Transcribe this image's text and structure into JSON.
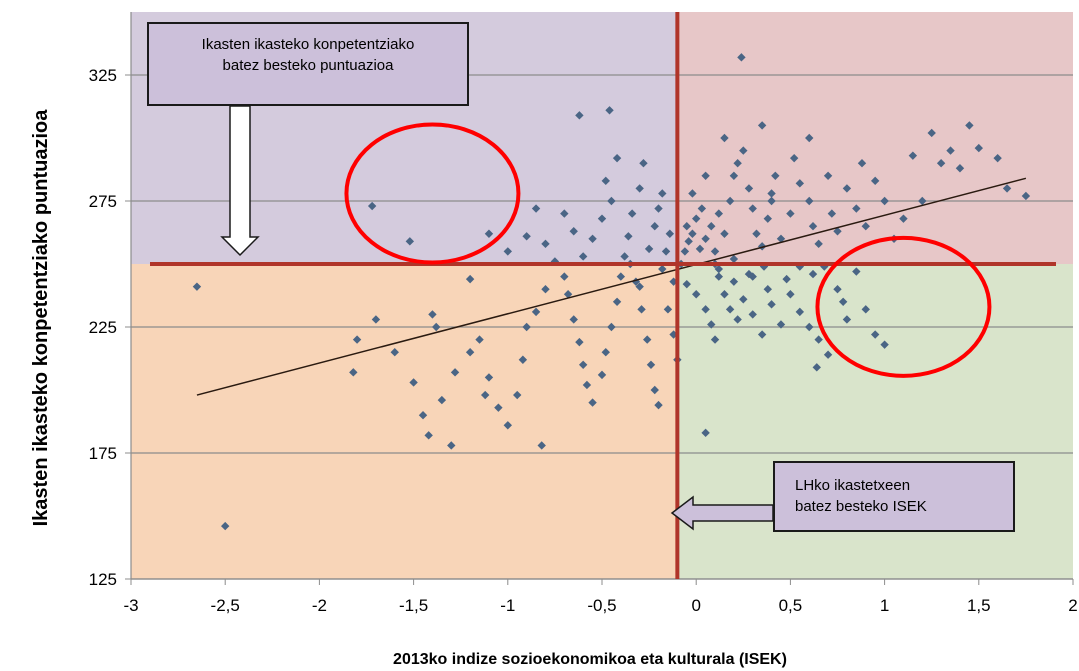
{
  "chart_data": {
    "type": "scatter",
    "xlabel": "2013ko indize sozioekonomikoa eta kulturala (ISEK)",
    "ylabel": "Ikasten ikasteko konpetentziako puntuazioa",
    "xlim": [
      -3,
      2
    ],
    "ylim": [
      125,
      350
    ],
    "x_ticks": [
      "-3",
      "-2,5",
      "-2",
      "-1,5",
      "-1",
      "-0,5",
      "0",
      "0,5",
      "1",
      "1,5",
      "2"
    ],
    "y_ticks": [
      "125",
      "175",
      "225",
      "275",
      "325"
    ],
    "grid": "horizontal",
    "reference_lines": {
      "mean_isek": -0.1,
      "mean_score": 250
    },
    "trendline": [
      [
        -2.65,
        198
      ],
      [
        1.75,
        284
      ]
    ],
    "quadrant_colors": {
      "top_left": "#d4cbdd",
      "top_right": "#e7c7c8",
      "bottom_left": "#f8d5b8",
      "bottom_right": "#d9e4cb"
    },
    "reference_line_color": "#b0352a",
    "marker_color": "#4a6585",
    "annotations": [
      {
        "id": "mean-score",
        "lines": [
          "Ikasten ikasteko konpetentziako",
          "batez besteko puntuazioa"
        ]
      },
      {
        "id": "mean-isek",
        "lines": [
          "LHko ikastetxeen",
          "batez besteko ISEK"
        ]
      }
    ],
    "highlight_circles": [
      {
        "x": -1.4,
        "y": 278
      },
      {
        "x": 1.1,
        "y": 233
      }
    ],
    "points": [
      [
        -2.65,
        241
      ],
      [
        -2.5,
        146
      ],
      [
        -1.72,
        273
      ],
      [
        -1.52,
        259
      ],
      [
        -1.8,
        220
      ],
      [
        -1.7,
        228
      ],
      [
        -1.82,
        207
      ],
      [
        -1.6,
        215
      ],
      [
        -1.5,
        203
      ],
      [
        -1.45,
        190
      ],
      [
        -1.42,
        182
      ],
      [
        -1.35,
        196
      ],
      [
        -1.3,
        178
      ],
      [
        -1.28,
        207
      ],
      [
        -1.4,
        230
      ],
      [
        -1.38,
        225
      ],
      [
        -1.2,
        215
      ],
      [
        -1.15,
        220
      ],
      [
        -1.1,
        205
      ],
      [
        -1.12,
        198
      ],
      [
        -1.05,
        193
      ],
      [
        -1.0,
        186
      ],
      [
        -0.95,
        198
      ],
      [
        -0.92,
        212
      ],
      [
        -0.9,
        225
      ],
      [
        -0.85,
        231
      ],
      [
        -0.82,
        178
      ],
      [
        -0.8,
        240
      ],
      [
        -1.2,
        244
      ],
      [
        -1.1,
        262
      ],
      [
        -1.0,
        255
      ],
      [
        -0.9,
        261
      ],
      [
        -0.85,
        272
      ],
      [
        -0.8,
        258
      ],
      [
        -0.75,
        251
      ],
      [
        -0.7,
        245
      ],
      [
        -0.68,
        238
      ],
      [
        -0.65,
        228
      ],
      [
        -0.62,
        219
      ],
      [
        -0.6,
        210
      ],
      [
        -0.58,
        202
      ],
      [
        -0.55,
        195
      ],
      [
        -0.5,
        206
      ],
      [
        -0.48,
        215
      ],
      [
        -0.45,
        225
      ],
      [
        -0.42,
        235
      ],
      [
        -0.4,
        245
      ],
      [
        -0.38,
        253
      ],
      [
        -0.36,
        261
      ],
      [
        -0.34,
        270
      ],
      [
        -0.3,
        280
      ],
      [
        -0.28,
        290
      ],
      [
        -0.32,
        243
      ],
      [
        -0.29,
        232
      ],
      [
        -0.26,
        220
      ],
      [
        -0.24,
        210
      ],
      [
        -0.22,
        200
      ],
      [
        -0.2,
        194
      ],
      [
        -0.18,
        248
      ],
      [
        -0.16,
        255
      ],
      [
        -0.14,
        262
      ],
      [
        -0.12,
        243
      ],
      [
        -0.15,
        232
      ],
      [
        -0.12,
        222
      ],
      [
        -0.1,
        212
      ],
      [
        -0.25,
        256
      ],
      [
        -0.22,
        265
      ],
      [
        -0.2,
        272
      ],
      [
        -0.18,
        278
      ],
      [
        -0.3,
        241
      ],
      [
        -0.35,
        250
      ],
      [
        -0.55,
        260
      ],
      [
        -0.5,
        268
      ],
      [
        -0.45,
        275
      ],
      [
        -0.6,
        253
      ],
      [
        -0.65,
        263
      ],
      [
        -0.7,
        270
      ],
      [
        -0.48,
        283
      ],
      [
        -0.42,
        292
      ],
      [
        -0.46,
        311
      ],
      [
        -0.62,
        309
      ],
      [
        -0.08,
        250
      ],
      [
        -0.06,
        255
      ],
      [
        -0.04,
        259
      ],
      [
        -0.02,
        262
      ],
      [
        0.0,
        268
      ],
      [
        0.02,
        256
      ],
      [
        0.05,
        260
      ],
      [
        0.08,
        265
      ],
      [
        0.1,
        255
      ],
      [
        0.12,
        270
      ],
      [
        0.15,
        262
      ],
      [
        0.18,
        275
      ],
      [
        0.2,
        285
      ],
      [
        0.22,
        290
      ],
      [
        0.24,
        332
      ],
      [
        0.25,
        295
      ],
      [
        0.28,
        280
      ],
      [
        0.3,
        272
      ],
      [
        0.32,
        262
      ],
      [
        0.35,
        257
      ],
      [
        0.38,
        268
      ],
      [
        0.4,
        278
      ],
      [
        0.42,
        285
      ],
      [
        0.45,
        260
      ],
      [
        0.5,
        270
      ],
      [
        0.52,
        292
      ],
      [
        0.55,
        282
      ],
      [
        0.6,
        275
      ],
      [
        0.62,
        265
      ],
      [
        0.65,
        258
      ],
      [
        0.7,
        285
      ],
      [
        0.72,
        270
      ],
      [
        0.75,
        263
      ],
      [
        0.8,
        280
      ],
      [
        0.85,
        272
      ],
      [
        0.88,
        290
      ],
      [
        0.9,
        265
      ],
      [
        0.95,
        283
      ],
      [
        1.0,
        275
      ],
      [
        1.05,
        260
      ],
      [
        1.1,
        268
      ],
      [
        1.15,
        293
      ],
      [
        1.2,
        275
      ],
      [
        1.25,
        302
      ],
      [
        1.3,
        290
      ],
      [
        1.35,
        295
      ],
      [
        1.4,
        288
      ],
      [
        1.45,
        305
      ],
      [
        1.5,
        296
      ],
      [
        1.6,
        292
      ],
      [
        1.65,
        280
      ],
      [
        1.75,
        277
      ],
      [
        -0.05,
        242
      ],
      [
        0.0,
        238
      ],
      [
        0.05,
        232
      ],
      [
        0.08,
        226
      ],
      [
        0.1,
        220
      ],
      [
        0.12,
        245
      ],
      [
        0.15,
        238
      ],
      [
        0.18,
        232
      ],
      [
        0.2,
        243
      ],
      [
        0.22,
        228
      ],
      [
        0.25,
        236
      ],
      [
        0.28,
        246
      ],
      [
        0.3,
        230
      ],
      [
        0.35,
        222
      ],
      [
        0.38,
        240
      ],
      [
        0.4,
        234
      ],
      [
        0.45,
        226
      ],
      [
        0.48,
        244
      ],
      [
        0.5,
        238
      ],
      [
        0.55,
        231
      ],
      [
        0.6,
        225
      ],
      [
        0.62,
        246
      ],
      [
        0.65,
        220
      ],
      [
        0.7,
        214
      ],
      [
        0.75,
        240
      ],
      [
        0.78,
        235
      ],
      [
        0.8,
        228
      ],
      [
        0.85,
        247
      ],
      [
        0.9,
        232
      ],
      [
        0.95,
        222
      ],
      [
        1.0,
        218
      ],
      [
        0.05,
        183
      ],
      [
        0.64,
        209
      ],
      [
        0.3,
        245
      ],
      [
        0.1,
        250
      ],
      [
        0.2,
        252
      ],
      [
        -0.05,
        265
      ],
      [
        0.03,
        272
      ],
      [
        0.12,
        248
      ],
      [
        0.36,
        249
      ],
      [
        0.55,
        249
      ],
      [
        0.68,
        249
      ],
      [
        0.15,
        300
      ],
      [
        0.35,
        305
      ],
      [
        0.4,
        275
      ],
      [
        0.6,
        300
      ],
      [
        0.05,
        285
      ],
      [
        -0.02,
        278
      ]
    ]
  }
}
